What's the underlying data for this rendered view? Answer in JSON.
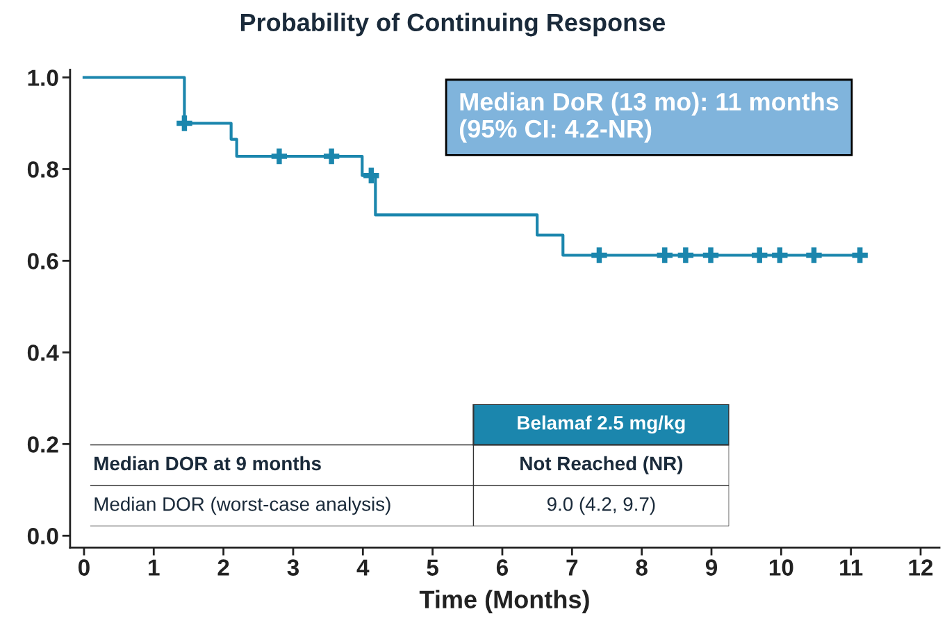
{
  "chart_data": {
    "type": "step",
    "title": "Probability of Continuing Response",
    "xlabel": "Time (Months)",
    "series": [
      {
        "type": "step",
        "color": "#1b86ad",
        "x": [
          0,
          1.44,
          2.11,
          2.19,
          3.99,
          4.18,
          6.5,
          6.87,
          11.13
        ],
        "values": [
          1.0,
          0.9,
          0.865,
          0.828,
          0.786,
          0.7,
          0.656,
          0.612,
          0.612
        ]
      },
      {
        "type": "scatter",
        "marker": "cross",
        "color": "#1b86ad",
        "x": [
          1.44,
          2.8,
          3.55,
          4.12,
          7.39,
          8.33,
          8.63,
          8.99,
          9.69,
          9.98,
          10.47,
          11.13
        ],
        "values": [
          0.9,
          0.828,
          0.828,
          0.786,
          0.612,
          0.612,
          0.612,
          0.612,
          0.612,
          0.612,
          0.612,
          0.612
        ]
      }
    ],
    "xlim": [
      -0.2,
      12.27
    ],
    "ylim": [
      -0.026,
      1.017
    ],
    "xticks": [
      0,
      1,
      2,
      3,
      4,
      5,
      6,
      7,
      8,
      9,
      10,
      11,
      12
    ],
    "yticks": [
      {
        "value": 0,
        "label": "0.0"
      },
      {
        "value": 0.2,
        "label": "0.2"
      },
      {
        "value": 0.4,
        "label": "0.4"
      },
      {
        "value": 0.6,
        "label": "0.6"
      },
      {
        "value": 0.8,
        "label": "0.8"
      },
      {
        "value": 1.0,
        "label": "1.0"
      }
    ],
    "grid": false,
    "legend": false,
    "annotations": [
      "Median DoR (13 mo): 11 months\n(95% CI: 4.2-NR)",
      "Belamaf 2.5 mg/kg",
      "Median DOR at 9 months",
      "Not Reached (NR)",
      "Median DOR (worst-case analysis)",
      "9.0 (4.2, 9.7)"
    ]
  }
}
